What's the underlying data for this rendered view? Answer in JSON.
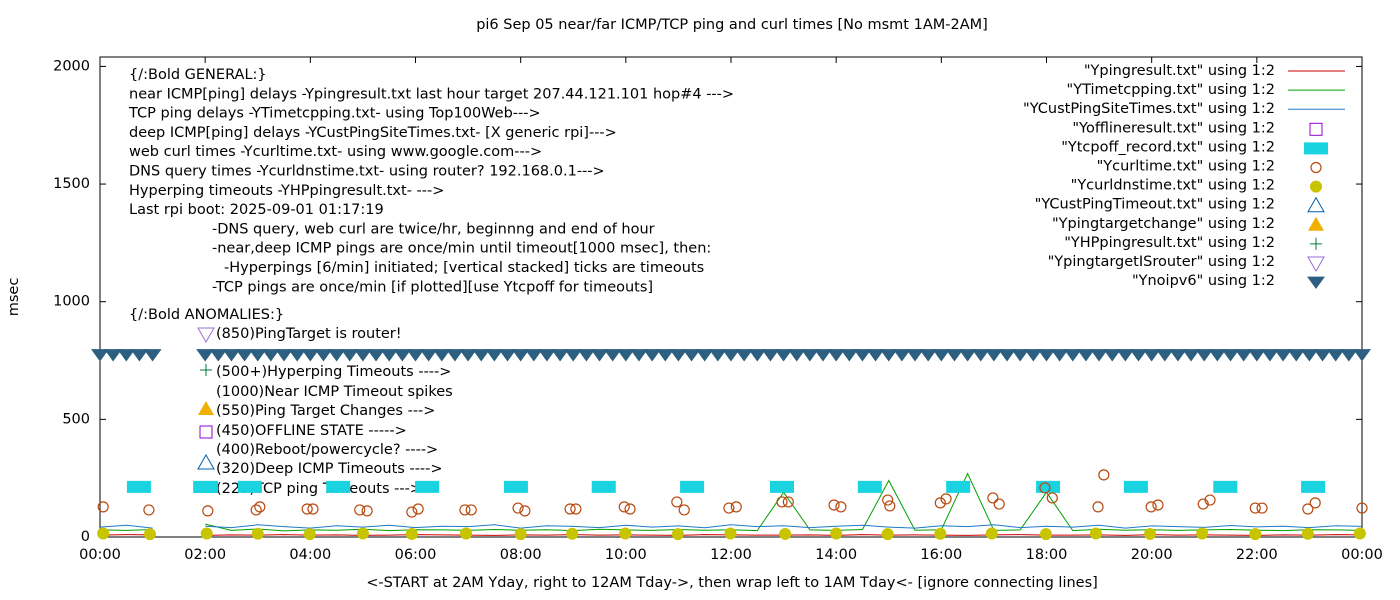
{
  "chart_data": {
    "type": "scatter",
    "title": "pi6 Sep 05  near/far ICMP/TCP ping and curl times [No msmt 1AM-2AM]",
    "x_label": "<-START at 2AM Yday, right to 12AM Tday->, then wrap left to 1AM Tday<- [ignore connecting lines]",
    "y_label": "msec",
    "xlim": [
      0,
      24
    ],
    "ylim": [
      0,
      2040
    ],
    "xticks": [
      {
        "value": 0,
        "label": "00:00"
      },
      {
        "value": 2,
        "label": "02:00"
      },
      {
        "value": 4,
        "label": "04:00"
      },
      {
        "value": 6,
        "label": "06:00"
      },
      {
        "value": 8,
        "label": "08:00"
      },
      {
        "value": 10,
        "label": "10:00"
      },
      {
        "value": 12,
        "label": "12:00"
      },
      {
        "value": 14,
        "label": "14:00"
      },
      {
        "value": 16,
        "label": "16:00"
      },
      {
        "value": 18,
        "label": "18:00"
      },
      {
        "value": 20,
        "label": "20:00"
      },
      {
        "value": 22,
        "label": "22:00"
      },
      {
        "value": 24,
        "label": "00:00"
      }
    ],
    "yticks": [
      0,
      500,
      1000,
      1500,
      2000
    ],
    "legend": "top-right",
    "general_notes": [
      "{/:Bold GENERAL:}",
      "near ICMP[ping] delays -Ypingresult.txt last hour target 207.44.121.101 hop#4 --->",
      "TCP ping delays -YTimetcpping.txt- using Top100Web--->",
      "deep ICMP[ping] delays -YCustPingSiteTimes.txt- [X generic rpi]--->",
      "web curl times -Ycurltime.txt- using www.google.com--->",
      "DNS query times -Ycurldnstime.txt- using router? 192.168.0.1--->",
      "Hyperping timeouts -YHPpingresult.txt- --->",
      "Last rpi boot: 2025-09-01 01:17:19",
      "-DNS query, web curl are twice/hr, beginnng and end of hour",
      "-near,deep ICMP pings are once/min until timeout[1000 msec], then:",
      "-Hyperpings [6/min] initiated; [vertical stacked] ticks are timeouts",
      "-TCP pings are once/min [if plotted][use Ytcpoff for timeouts]"
    ],
    "anomaly_title": "{/:Bold ANOMALIES:}",
    "anomaly_notes": [
      "(850)PingTarget is router!",
      "(500+)Hyperping Timeouts ---->",
      "(1000)Near ICMP Timeout spikes",
      "(550)Ping Target Changes --->",
      "(450)OFFLINE STATE ----->",
      "(400)Reboot/powercycle? ---->",
      "(320)Deep ICMP Timeouts ---->",
      "(220)TCP ping Timeouts --->"
    ],
    "series": [
      {
        "name": "\"Ypingresult.txt\" using 1:2",
        "color": "#cc0000",
        "marker": "line",
        "x": [
          0,
          0.5,
          1,
          1.5,
          2,
          2.5,
          3,
          3.5,
          4,
          4.5,
          5,
          5.5,
          6,
          6.5,
          7,
          7.5,
          8,
          8.5,
          9,
          9.5,
          10,
          10.5,
          11,
          11.5,
          12,
          12.5,
          13,
          13.5,
          14,
          14.5,
          15,
          15.5,
          16,
          16.5,
          17,
          17.5,
          18,
          18.5,
          19,
          19.5,
          20,
          20.5,
          21,
          21.5,
          22,
          22.5,
          23,
          23.5,
          24
        ],
        "values": [
          8,
          10,
          9,
          null,
          7,
          9,
          8,
          10,
          8,
          9,
          7,
          8,
          10,
          9,
          8,
          7,
          9,
          8,
          10,
          8,
          9,
          8,
          7,
          10,
          9,
          8,
          8,
          9,
          7,
          10,
          8,
          9,
          8,
          7,
          9,
          10,
          8,
          8,
          9,
          7,
          10,
          8,
          9,
          8,
          7,
          9,
          8,
          10,
          9
        ]
      },
      {
        "name": "\"YTimetcpping.txt\" using 1:2",
        "color": "#00a000",
        "marker": "line",
        "x": [
          0,
          0.5,
          1,
          1.5,
          2,
          2.5,
          3,
          3.5,
          4,
          4.5,
          5,
          5.5,
          6,
          6.5,
          7,
          7.5,
          8,
          8.5,
          9,
          9.5,
          10,
          10.5,
          11,
          11.5,
          12,
          12.5,
          13,
          13.5,
          14,
          14.5,
          15,
          15.5,
          16,
          16.5,
          17,
          17.5,
          18,
          18.5,
          19,
          19.5,
          20,
          20.5,
          21,
          21.5,
          22,
          22.5,
          23,
          23.5,
          24
        ],
        "values": [
          30,
          28,
          32,
          null,
          55,
          28,
          34,
          26,
          30,
          29,
          33,
          27,
          31,
          30,
          28,
          32,
          29,
          31,
          27,
          33,
          30,
          28,
          32,
          29,
          31,
          27,
          190,
          30,
          28,
          32,
          240,
          29,
          31,
          270,
          28,
          30,
          190,
          27,
          33,
          29,
          31,
          28,
          30,
          32,
          29,
          27,
          31,
          30,
          28
        ]
      },
      {
        "name": "\"YCustPingSiteTimes.txt\" using 1:2",
        "color": "#1e78c8",
        "marker": "line",
        "x": [
          0,
          0.5,
          1,
          1.5,
          2,
          2.5,
          3,
          3.5,
          4,
          4.5,
          5,
          5.5,
          6,
          6.5,
          7,
          7.5,
          8,
          8.5,
          9,
          9.5,
          10,
          10.5,
          11,
          11.5,
          12,
          12.5,
          13,
          13.5,
          14,
          14.5,
          15,
          15.5,
          16,
          16.5,
          17,
          17.5,
          18,
          18.5,
          19,
          19.5,
          20,
          20.5,
          21,
          21.5,
          22,
          22.5,
          23,
          23.5,
          24
        ],
        "values": [
          42,
          50,
          38,
          null,
          46,
          40,
          52,
          44,
          38,
          48,
          42,
          50,
          40,
          46,
          44,
          52,
          38,
          48,
          45,
          40,
          50,
          42,
          47,
          39,
          52,
          44,
          48,
          40,
          46,
          50,
          42,
          38,
          48,
          44,
          52,
          40,
          46,
          42,
          50,
          38,
          47,
          44,
          41,
          49,
          43,
          46,
          40,
          48,
          45
        ]
      },
      {
        "name": "\"Yofflineresult.txt\" using 1:2",
        "color": "#9400d3",
        "marker": "open-square",
        "x": [],
        "values": []
      },
      {
        "name": "\"Ytcpoff_record.txt\" using 1:2",
        "color": "#19d3e0",
        "marker": "filled-square",
        "x": [
          0.74,
          2.0,
          2.85,
          4.53,
          6.22,
          7.91,
          9.58,
          11.26,
          12.97,
          14.64,
          16.32,
          18.03,
          19.7,
          21.4,
          23.07
        ],
        "values": [
          213,
          213,
          213,
          213,
          213,
          213,
          213,
          213,
          213,
          213,
          213,
          213,
          213,
          213,
          213
        ]
      },
      {
        "name": "\"Ycurltime.txt\" using 1:2",
        "color": "#b84a10",
        "marker": "open-circle",
        "x": [
          0.06,
          0.93,
          2.05,
          2.97,
          3.04,
          3.94,
          4.05,
          4.94,
          5.08,
          5.93,
          6.05,
          6.94,
          7.06,
          7.95,
          8.08,
          8.94,
          9.05,
          9.97,
          10.08,
          10.97,
          11.11,
          11.96,
          12.1,
          12.97,
          13.09,
          13.96,
          14.09,
          14.98,
          15.02,
          15.98,
          16.09,
          16.98,
          17.1,
          17.97,
          18.11,
          18.98,
          19.09,
          19.99,
          20.12,
          20.98,
          21.11,
          21.97,
          22.1,
          22.97,
          23.11,
          24
        ],
        "values": [
          128,
          115,
          111,
          115,
          128,
          119,
          119,
          115,
          111,
          106,
          119,
          115,
          115,
          123,
          111,
          119,
          119,
          128,
          119,
          149,
          115,
          123,
          128,
          149,
          149,
          136,
          128,
          157,
          132,
          145,
          162,
          166,
          140,
          209,
          166,
          128,
          264,
          128,
          136,
          140,
          157,
          123,
          123,
          119,
          145,
          123
        ]
      },
      {
        "name": "\"Ycurldnstime.txt\" using 1:2",
        "color": "#c8c400",
        "marker": "filled-circle",
        "x": [
          0.06,
          0.95,
          2.03,
          3.0,
          3.99,
          5.0,
          5.93,
          6.96,
          8.0,
          8.98,
          9.99,
          10.99,
          11.99,
          13.03,
          14.0,
          14.98,
          15.98,
          16.96,
          17.99,
          18.94,
          19.97,
          20.96,
          21.97,
          22.97,
          23.96
        ],
        "values": [
          15,
          12,
          15,
          14,
          12,
          15,
          13,
          15,
          12,
          14,
          15,
          12,
          15,
          13,
          15,
          12,
          14,
          15,
          12,
          15,
          13,
          15,
          12,
          14,
          15
        ]
      },
      {
        "name": "\"YCustPingTimeout.txt\" using 1:2",
        "color": "#0060ad",
        "marker": "open-triangle",
        "x": [],
        "values": []
      },
      {
        "name": "\"Ypingtargetchange\" using 1:2",
        "color": "#f0b000",
        "marker": "filled-triangle",
        "x": [],
        "values": []
      },
      {
        "name": "\"YHPpingresult.txt\" using 1:2",
        "color": "#007a3a",
        "marker": "plus",
        "x": [],
        "values": []
      },
      {
        "name": "\"YpingtargetISrouter\" using 1:2",
        "color": "#9b6fd6",
        "marker": "open-down-triangle",
        "x": [],
        "values": []
      },
      {
        "name": "\"Ynoipv6\" using 1:2",
        "color": "#2d5f80",
        "marker": "filled-down-triangle",
        "x": [
          0,
          0.25,
          0.5,
          0.75,
          1,
          2,
          2.25,
          2.5,
          2.75,
          3,
          3.25,
          3.5,
          3.75,
          4,
          4.25,
          4.5,
          4.75,
          5,
          5.25,
          5.5,
          5.75,
          6,
          6.25,
          6.5,
          6.75,
          7,
          7.25,
          7.5,
          7.75,
          8,
          8.25,
          8.5,
          8.75,
          9,
          9.25,
          9.5,
          9.75,
          10,
          10.25,
          10.5,
          10.75,
          11,
          11.25,
          11.5,
          11.75,
          12,
          12.25,
          12.5,
          12.75,
          13,
          13.25,
          13.5,
          13.75,
          14,
          14.25,
          14.5,
          14.75,
          15,
          15.25,
          15.5,
          15.75,
          16,
          16.25,
          16.5,
          16.75,
          17,
          17.25,
          17.5,
          17.75,
          18,
          18.25,
          18.5,
          18.75,
          19,
          19.25,
          19.5,
          19.75,
          20,
          20.25,
          20.5,
          20.75,
          21,
          21.25,
          21.5,
          21.75,
          22,
          22.25,
          22.5,
          22.75,
          23,
          23.25,
          23.5,
          23.75,
          24
        ],
        "values": [
          775,
          775,
          775,
          775,
          775,
          775,
          775,
          775,
          775,
          775,
          775,
          775,
          775,
          775,
          775,
          775,
          775,
          775,
          775,
          775,
          775,
          775,
          775,
          775,
          775,
          775,
          775,
          775,
          775,
          775,
          775,
          775,
          775,
          775,
          775,
          775,
          775,
          775,
          775,
          775,
          775,
          775,
          775,
          775,
          775,
          775,
          775,
          775,
          775,
          775,
          775,
          775,
          775,
          775,
          775,
          775,
          775,
          775,
          775,
          775,
          775,
          775,
          775,
          775,
          775,
          775,
          775,
          775,
          775,
          775,
          775,
          775,
          775,
          775,
          775,
          775,
          775,
          775,
          775,
          775,
          775,
          775,
          775,
          775,
          775,
          775,
          775,
          775,
          775,
          775,
          775,
          775,
          775,
          775
        ]
      }
    ]
  }
}
